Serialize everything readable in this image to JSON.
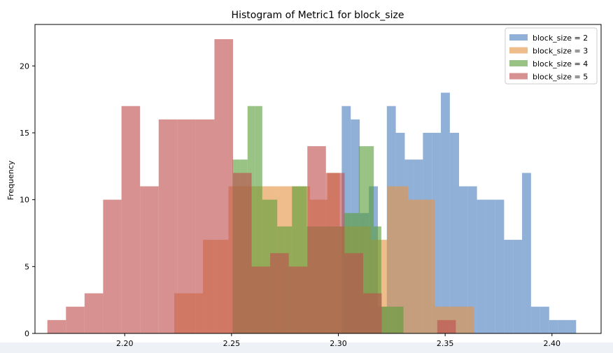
{
  "chart_data": {
    "type": "histogram",
    "title": "Histogram of Metric1 for block_size",
    "xlabel": "",
    "ylabel": "Frequency",
    "xlim": [
      2.158,
      2.423
    ],
    "ylim": [
      0,
      23.1
    ],
    "x_ticks": [
      2.2,
      2.25,
      2.3,
      2.35,
      2.4
    ],
    "x_tick_labels": [
      "2.20",
      "2.25",
      "2.30",
      "2.35",
      "2.40"
    ],
    "y_ticks": [
      0,
      5,
      10,
      15,
      20
    ],
    "y_tick_labels": [
      "0",
      "5",
      "10",
      "15",
      "20"
    ],
    "legend_placement": "upper-right",
    "grid": false,
    "series": [
      {
        "name": "block_size = 2",
        "color": "#4c7fbf",
        "bin_edges": [
          2.3016,
          2.3058,
          2.31,
          2.3143,
          2.3185,
          2.3227,
          2.3269,
          2.3311,
          2.3354,
          2.3396,
          2.3438,
          2.348,
          2.3522,
          2.3565,
          2.3607,
          2.3649,
          2.3691,
          2.3733,
          2.3776,
          2.3818,
          2.386,
          2.3902,
          2.3944,
          2.3987,
          2.4029,
          2.4071,
          2.4113
        ],
        "counts": [
          17,
          16,
          9,
          11,
          2,
          17,
          15,
          13,
          13,
          15,
          15,
          18,
          15,
          11,
          11,
          10,
          10,
          10,
          7,
          7,
          12,
          2,
          2,
          1,
          1,
          1
        ]
      },
      {
        "name": "block_size = 3",
        "color": "#e59545",
        "bin_edges": [
          2.2232,
          2.2366,
          2.2486,
          2.2598,
          2.2702,
          2.2799,
          2.2867,
          2.2949,
          2.3007,
          2.3083,
          2.3151,
          2.323,
          2.3326,
          2.3451,
          2.3539,
          2.3634
        ],
        "counts": [
          3,
          7,
          11,
          11,
          11,
          11,
          10,
          12,
          8,
          8,
          7,
          11,
          10,
          2,
          2
        ]
      },
      {
        "name": "block_size = 4",
        "color": "#5a9e3a",
        "bin_edges": [
          2.2505,
          2.254,
          2.2575,
          2.2609,
          2.2644,
          2.2679,
          2.2714,
          2.2749,
          2.2783,
          2.2818,
          2.2853,
          2.2888,
          2.2922,
          2.2957,
          2.2992,
          2.3027,
          2.3062,
          2.3096,
          2.3131,
          2.3166,
          2.3201,
          2.3236,
          2.327,
          2.3305
        ],
        "counts": [
          13,
          13,
          17,
          17,
          10,
          10,
          8,
          8,
          11,
          11,
          8,
          8,
          8,
          8,
          8,
          9,
          9,
          14,
          14,
          8,
          2,
          2,
          2
        ]
      },
      {
        "name": "block_size = 5",
        "color": "#bf4d4d",
        "bin_edges": [
          2.1638,
          2.1725,
          2.1812,
          2.1899,
          2.1985,
          2.2072,
          2.2159,
          2.2246,
          2.2333,
          2.242,
          2.2507,
          2.2594,
          2.2681,
          2.2768,
          2.2855,
          2.2942,
          2.3029,
          2.3116,
          2.3203,
          2.329,
          2.3377,
          2.3463,
          2.355
        ],
        "counts": [
          1,
          2,
          3,
          10,
          17,
          11,
          16,
          16,
          16,
          22,
          12,
          5,
          6,
          5,
          14,
          12,
          6,
          3,
          0,
          0,
          0,
          1
        ]
      }
    ]
  }
}
